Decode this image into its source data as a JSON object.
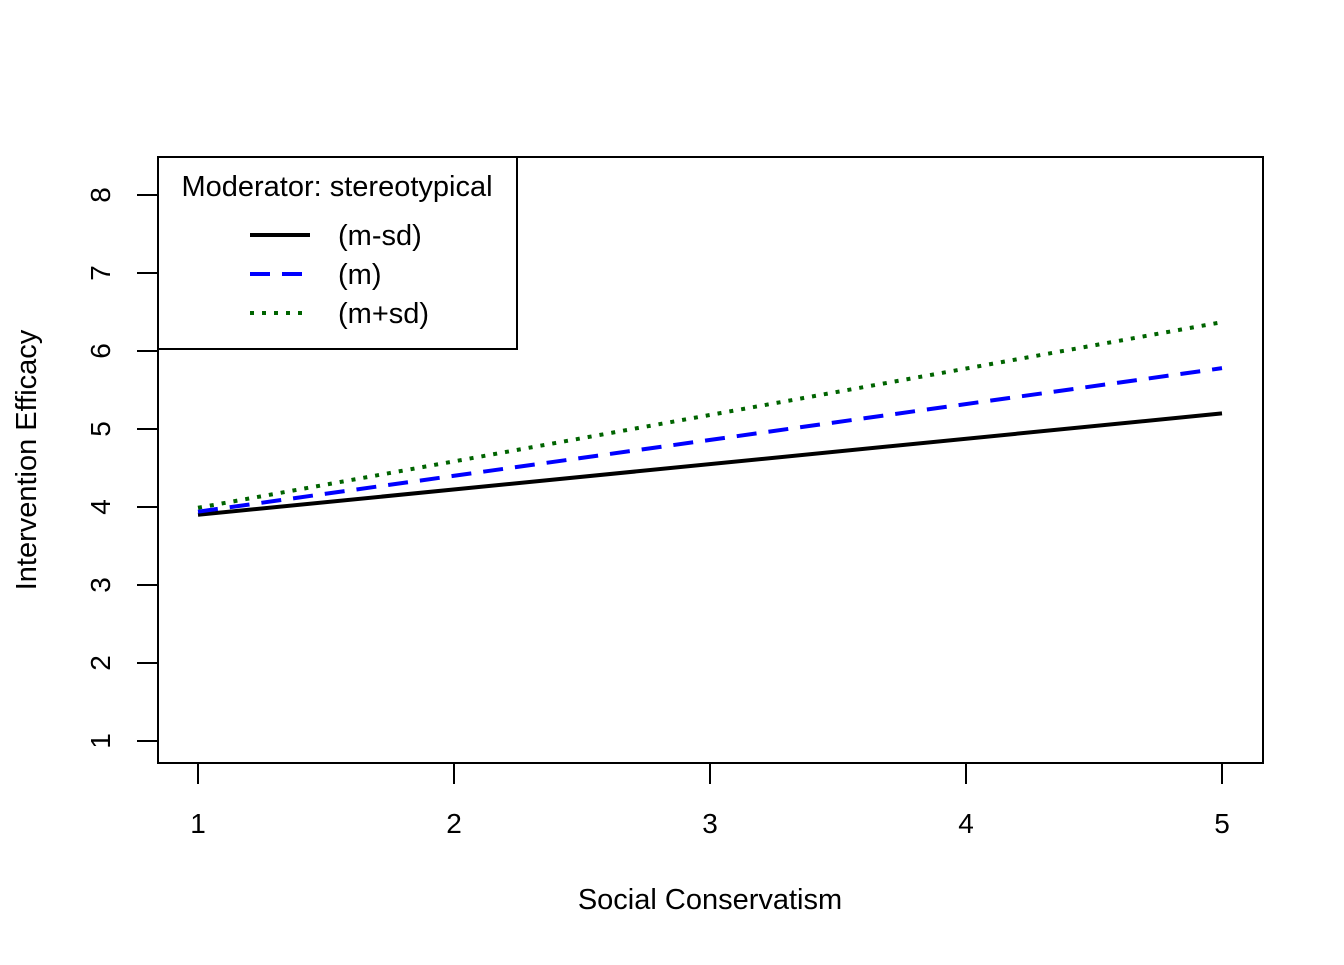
{
  "chart_data": {
    "type": "line",
    "xlabel": "Social Conservatism",
    "ylabel": "Intervention Efficacy",
    "xlim": [
      1,
      5
    ],
    "ylim": [
      1,
      8
    ],
    "x_ticks": [
      "1",
      "2",
      "3",
      "4",
      "5"
    ],
    "y_ticks": [
      "1",
      "2",
      "3",
      "4",
      "5",
      "6",
      "7",
      "8"
    ],
    "grid": false,
    "legend": {
      "title": "Moderator: stereotypical",
      "position": "top-left"
    },
    "series": [
      {
        "name": "(m-sd)",
        "x": [
          1,
          5
        ],
        "values": [
          3.9,
          5.2
        ],
        "color": "#000000",
        "style": "solid"
      },
      {
        "name": "(m)",
        "x": [
          1,
          5
        ],
        "values": [
          3.94,
          5.78
        ],
        "color": "#0000ff",
        "style": "dashed"
      },
      {
        "name": "(m+sd)",
        "x": [
          1,
          5
        ],
        "values": [
          3.99,
          6.37
        ],
        "color": "#006400",
        "style": "dotted"
      }
    ]
  }
}
